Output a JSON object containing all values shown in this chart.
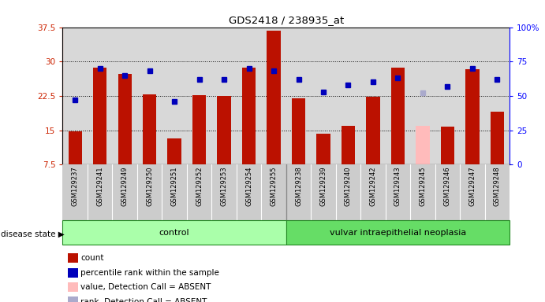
{
  "title": "GDS2418 / 238935_at",
  "samples": [
    "GSM129237",
    "GSM129241",
    "GSM129249",
    "GSM129250",
    "GSM129251",
    "GSM129252",
    "GSM129253",
    "GSM129254",
    "GSM129255",
    "GSM129238",
    "GSM129239",
    "GSM129240",
    "GSM129242",
    "GSM129243",
    "GSM129245",
    "GSM129246",
    "GSM129247",
    "GSM129248"
  ],
  "bar_values": [
    14.8,
    28.6,
    27.3,
    22.8,
    13.3,
    22.6,
    22.5,
    28.7,
    36.8,
    21.9,
    14.3,
    16.0,
    22.3,
    28.6,
    16.0,
    15.8,
    28.3,
    19.0
  ],
  "rank_values": [
    47,
    70,
    65,
    68,
    46,
    62,
    62,
    70,
    68,
    62,
    53,
    58,
    60,
    63,
    52,
    57,
    70,
    62
  ],
  "absent_flags": [
    false,
    false,
    false,
    false,
    false,
    false,
    false,
    false,
    false,
    false,
    false,
    false,
    false,
    false,
    true,
    false,
    false,
    false
  ],
  "bar_color_normal": "#bb1100",
  "bar_color_absent": "#ffbbbb",
  "rank_color_normal": "#0000bb",
  "rank_color_absent": "#aaaacc",
  "ylim_left": [
    7.5,
    37.5
  ],
  "ylim_right": [
    0,
    100
  ],
  "yticks_left": [
    7.5,
    15.0,
    22.5,
    30.0,
    37.5
  ],
  "yticks_right": [
    0,
    25,
    50,
    75,
    100
  ],
  "ytick_labels_left": [
    "7.5",
    "15",
    "22.5",
    "30",
    "37.5"
  ],
  "ytick_labels_right": [
    "0",
    "25",
    "50",
    "75",
    "100%"
  ],
  "hlines": [
    15.0,
    22.5,
    30.0
  ],
  "n_control": 9,
  "control_label": "control",
  "disease_label": "vulvar intraepithelial neoplasia",
  "disease_state_label": "disease state",
  "plot_bg_color": "#d8d8d8",
  "xtick_bg_color": "#cccccc",
  "group_box_color_control": "#aaffaa",
  "group_box_color_disease": "#66dd66",
  "group_box_edge": "#228822",
  "legend_items": [
    {
      "color": "#bb1100",
      "label": "count",
      "marker": "square"
    },
    {
      "color": "#0000bb",
      "label": "percentile rank within the sample",
      "marker": "square"
    },
    {
      "color": "#ffbbbb",
      "label": "value, Detection Call = ABSENT",
      "marker": "square"
    },
    {
      "color": "#aaaacc",
      "label": "rank, Detection Call = ABSENT",
      "marker": "square"
    }
  ]
}
